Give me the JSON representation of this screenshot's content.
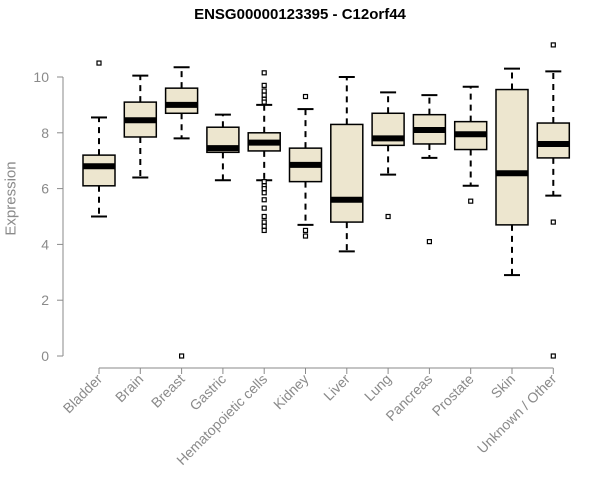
{
  "chart_data": {
    "type": "box",
    "title": "ENSG00000123395 - C12orf44",
    "ylabel": "Expression",
    "xlabel": "",
    "ylim": [
      0,
      11.5
    ],
    "yticks": [
      0,
      2,
      4,
      6,
      8,
      10
    ],
    "grid": false,
    "box_fill": "#ede6cf",
    "box_stroke": "#000000",
    "axis_color": "#8a8a8a",
    "categories": [
      "Bladder",
      "Brain",
      "Breast",
      "Gastric",
      "Hematopoietic cells",
      "Kidney",
      "Liver",
      "Lung",
      "Pancreas",
      "Prostate",
      "Skin",
      "Unknown / Other"
    ],
    "series": [
      {
        "category": "Bladder",
        "whisker_low": 5.0,
        "q1": 6.1,
        "median": 6.8,
        "q3": 7.2,
        "whisker_high": 8.55,
        "outliers": [
          10.5
        ]
      },
      {
        "category": "Brain",
        "whisker_low": 6.4,
        "q1": 7.85,
        "median": 8.45,
        "q3": 9.1,
        "whisker_high": 10.05,
        "outliers": []
      },
      {
        "category": "Breast",
        "whisker_low": 7.8,
        "q1": 8.7,
        "median": 9.0,
        "q3": 9.6,
        "whisker_high": 10.35,
        "outliers": [
          0.0
        ]
      },
      {
        "category": "Gastric",
        "whisker_low": 6.3,
        "q1": 7.3,
        "median": 7.45,
        "q3": 8.2,
        "whisker_high": 8.65,
        "outliers": []
      },
      {
        "category": "Hematopoietic cells",
        "whisker_low": 6.3,
        "q1": 7.35,
        "median": 7.65,
        "q3": 8.0,
        "whisker_high": 9.0,
        "outliers": [
          10.15,
          9.7,
          9.5,
          9.35,
          9.2,
          9.1,
          6.25,
          6.1,
          6.0,
          5.85,
          5.6,
          5.3,
          5.0,
          4.8,
          4.65,
          4.5
        ]
      },
      {
        "category": "Kidney",
        "whisker_low": 4.7,
        "q1": 6.25,
        "median": 6.85,
        "q3": 7.45,
        "whisker_high": 8.85,
        "outliers": [
          9.3,
          4.5,
          4.3
        ]
      },
      {
        "category": "Liver",
        "whisker_low": 3.75,
        "q1": 4.8,
        "median": 5.6,
        "q3": 8.3,
        "whisker_high": 10.0,
        "outliers": []
      },
      {
        "category": "Lung",
        "whisker_low": 6.5,
        "q1": 7.55,
        "median": 7.8,
        "q3": 8.7,
        "whisker_high": 9.45,
        "outliers": [
          5.0
        ]
      },
      {
        "category": "Pancreas",
        "whisker_low": 7.1,
        "q1": 7.6,
        "median": 8.1,
        "q3": 8.65,
        "whisker_high": 9.35,
        "outliers": [
          4.1
        ]
      },
      {
        "category": "Prostate",
        "whisker_low": 6.1,
        "q1": 7.4,
        "median": 7.95,
        "q3": 8.4,
        "whisker_high": 9.65,
        "outliers": [
          5.55
        ]
      },
      {
        "category": "Skin",
        "whisker_low": 2.9,
        "q1": 4.7,
        "median": 6.55,
        "q3": 9.55,
        "whisker_high": 10.3,
        "outliers": []
      },
      {
        "category": "Unknown / Other",
        "whisker_low": 5.75,
        "q1": 7.1,
        "median": 7.6,
        "q3": 8.35,
        "whisker_high": 10.2,
        "outliers": [
          11.15,
          4.8,
          0.0
        ]
      }
    ]
  }
}
